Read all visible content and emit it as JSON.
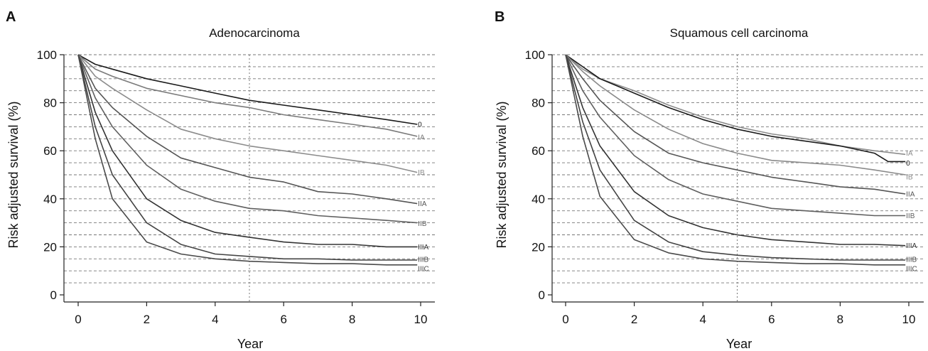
{
  "chart_data": [
    {
      "type": "line",
      "panel": "A",
      "title": "Adenocarcinoma",
      "xlabel": "Year",
      "ylabel": "Risk adjusted survival (%)",
      "xlim": [
        0,
        10
      ],
      "ylim": [
        0,
        100
      ],
      "xticks": [
        0,
        2,
        4,
        6,
        8,
        10
      ],
      "yticks": [
        0,
        20,
        40,
        60,
        80,
        100
      ],
      "grid": "horizontal dashed every 5",
      "reference_line_x": 5,
      "series": [
        {
          "name": "0",
          "color": "#1a1a1a",
          "x": [
            0,
            0.5,
            1,
            2,
            3,
            4,
            5,
            6,
            7,
            8,
            9,
            9.9
          ],
          "y": [
            100,
            96,
            94,
            90,
            87,
            84,
            81,
            79,
            77,
            75,
            73,
            71
          ]
        },
        {
          "name": "IA",
          "color": "#7a7a7a",
          "x": [
            0,
            0.5,
            1,
            2,
            3,
            4,
            5,
            6,
            7,
            8,
            9,
            9.9
          ],
          "y": [
            100,
            94,
            91,
            86,
            83,
            80,
            78,
            75,
            73,
            71,
            69,
            66
          ]
        },
        {
          "name": "IB",
          "color": "#8c8c8c",
          "x": [
            0,
            0.5,
            1,
            2,
            3,
            4,
            5,
            6,
            7,
            8,
            9,
            9.9
          ],
          "y": [
            100,
            91,
            86,
            77,
            69,
            65,
            62,
            60,
            58,
            56,
            54,
            51
          ]
        },
        {
          "name": "IIA",
          "color": "#555555",
          "x": [
            0,
            0.5,
            1,
            2,
            3,
            4,
            5,
            6,
            7,
            8,
            9,
            9.9
          ],
          "y": [
            100,
            86,
            78,
            66,
            57,
            53,
            49,
            47,
            43,
            42,
            40,
            38
          ]
        },
        {
          "name": "IIB",
          "color": "#5f5f5f",
          "x": [
            0,
            0.5,
            1,
            2,
            3,
            4,
            5,
            6,
            7,
            8,
            9,
            9.9
          ],
          "y": [
            100,
            82,
            70,
            54,
            44,
            39,
            36,
            35,
            33,
            32,
            31,
            30
          ]
        },
        {
          "name": "IIIA",
          "color": "#333333",
          "x": [
            0,
            0.5,
            1,
            2,
            3,
            4,
            5,
            6,
            7,
            8,
            9,
            9.9
          ],
          "y": [
            100,
            76,
            60,
            40,
            31,
            26,
            24,
            22,
            21,
            21,
            20,
            20
          ]
        },
        {
          "name": "IIIB",
          "color": "#444444",
          "x": [
            0,
            0.5,
            1,
            2,
            3,
            4,
            5,
            6,
            7,
            8,
            9,
            9.9
          ],
          "y": [
            100,
            70,
            50,
            30,
            21,
            17,
            16,
            15,
            15,
            14.5,
            14.5,
            14.5
          ]
        },
        {
          "name": "IIIC",
          "color": "#4a4a4a",
          "x": [
            0,
            0.5,
            1,
            2,
            3,
            4,
            5,
            6,
            7,
            8,
            9,
            9.9
          ],
          "y": [
            100,
            65,
            40,
            22,
            17,
            15,
            14,
            13.5,
            13,
            13,
            12.5,
            12.5
          ]
        }
      ]
    },
    {
      "type": "line",
      "panel": "B",
      "title": "Squamous cell carcinoma",
      "xlabel": "Year",
      "ylabel": "Risk adjusted survival (%)",
      "xlim": [
        0,
        10
      ],
      "ylim": [
        0,
        100
      ],
      "xticks": [
        0,
        2,
        4,
        6,
        8,
        10
      ],
      "yticks": [
        0,
        20,
        40,
        60,
        80,
        100
      ],
      "grid": "horizontal dashed every 5",
      "reference_line_x": 5,
      "series": [
        {
          "name": "IA",
          "color": "#8c8c8c",
          "x": [
            0,
            0.5,
            1,
            2,
            3,
            4,
            5,
            6,
            7,
            8,
            9,
            9.9
          ],
          "y": [
            100,
            94,
            90,
            85,
            79,
            74,
            70,
            67,
            65,
            62,
            60,
            58.5
          ]
        },
        {
          "name": "0",
          "color": "#1a1a1a",
          "x": [
            0,
            0.5,
            1,
            2,
            3,
            4,
            5,
            6,
            7,
            8,
            9,
            9.4,
            9.9
          ],
          "y": [
            100,
            95,
            90,
            84,
            78,
            73,
            69,
            66,
            64,
            62,
            59,
            55.5,
            55.5
          ]
        },
        {
          "name": "IB",
          "color": "#8a8a8a",
          "x": [
            0,
            0.5,
            1,
            2,
            3,
            4,
            5,
            6,
            7,
            8,
            9,
            9.9
          ],
          "y": [
            100,
            93,
            87,
            77,
            69,
            63,
            59,
            56,
            55,
            54,
            52,
            50
          ]
        },
        {
          "name": "IIA",
          "color": "#555555",
          "x": [
            0,
            0.5,
            1,
            2,
            3,
            4,
            5,
            6,
            7,
            8,
            9,
            9.9
          ],
          "y": [
            100,
            90,
            81,
            68,
            59,
            55,
            52,
            49,
            47,
            45,
            44,
            42
          ]
        },
        {
          "name": "IIB",
          "color": "#5f5f5f",
          "x": [
            0,
            0.5,
            1,
            2,
            3,
            4,
            5,
            6,
            7,
            8,
            9,
            9.9
          ],
          "y": [
            100,
            85,
            74,
            58,
            48,
            42,
            39,
            36,
            35,
            34,
            33,
            33
          ]
        },
        {
          "name": "IIIA",
          "color": "#333333",
          "x": [
            0,
            0.5,
            1,
            2,
            3,
            4,
            5,
            6,
            7,
            8,
            9,
            9.9
          ],
          "y": [
            100,
            78,
            62,
            43,
            33,
            28,
            25,
            23,
            22,
            21,
            21,
            20.5
          ]
        },
        {
          "name": "IIIB",
          "color": "#444444",
          "x": [
            0,
            0.5,
            1,
            2,
            3,
            4,
            5,
            6,
            7,
            8,
            9,
            9.9
          ],
          "y": [
            100,
            72,
            52,
            31,
            22,
            18,
            16.5,
            15.5,
            15,
            14.5,
            14.5,
            14.5
          ]
        },
        {
          "name": "IIIC",
          "color": "#4a4a4a",
          "x": [
            0,
            0.5,
            1,
            2,
            3,
            4,
            5,
            6,
            7,
            8,
            9,
            9.9
          ],
          "y": [
            100,
            66,
            41,
            23,
            17.5,
            15,
            14,
            13.5,
            13,
            13,
            12.5,
            12.5
          ]
        }
      ]
    }
  ]
}
